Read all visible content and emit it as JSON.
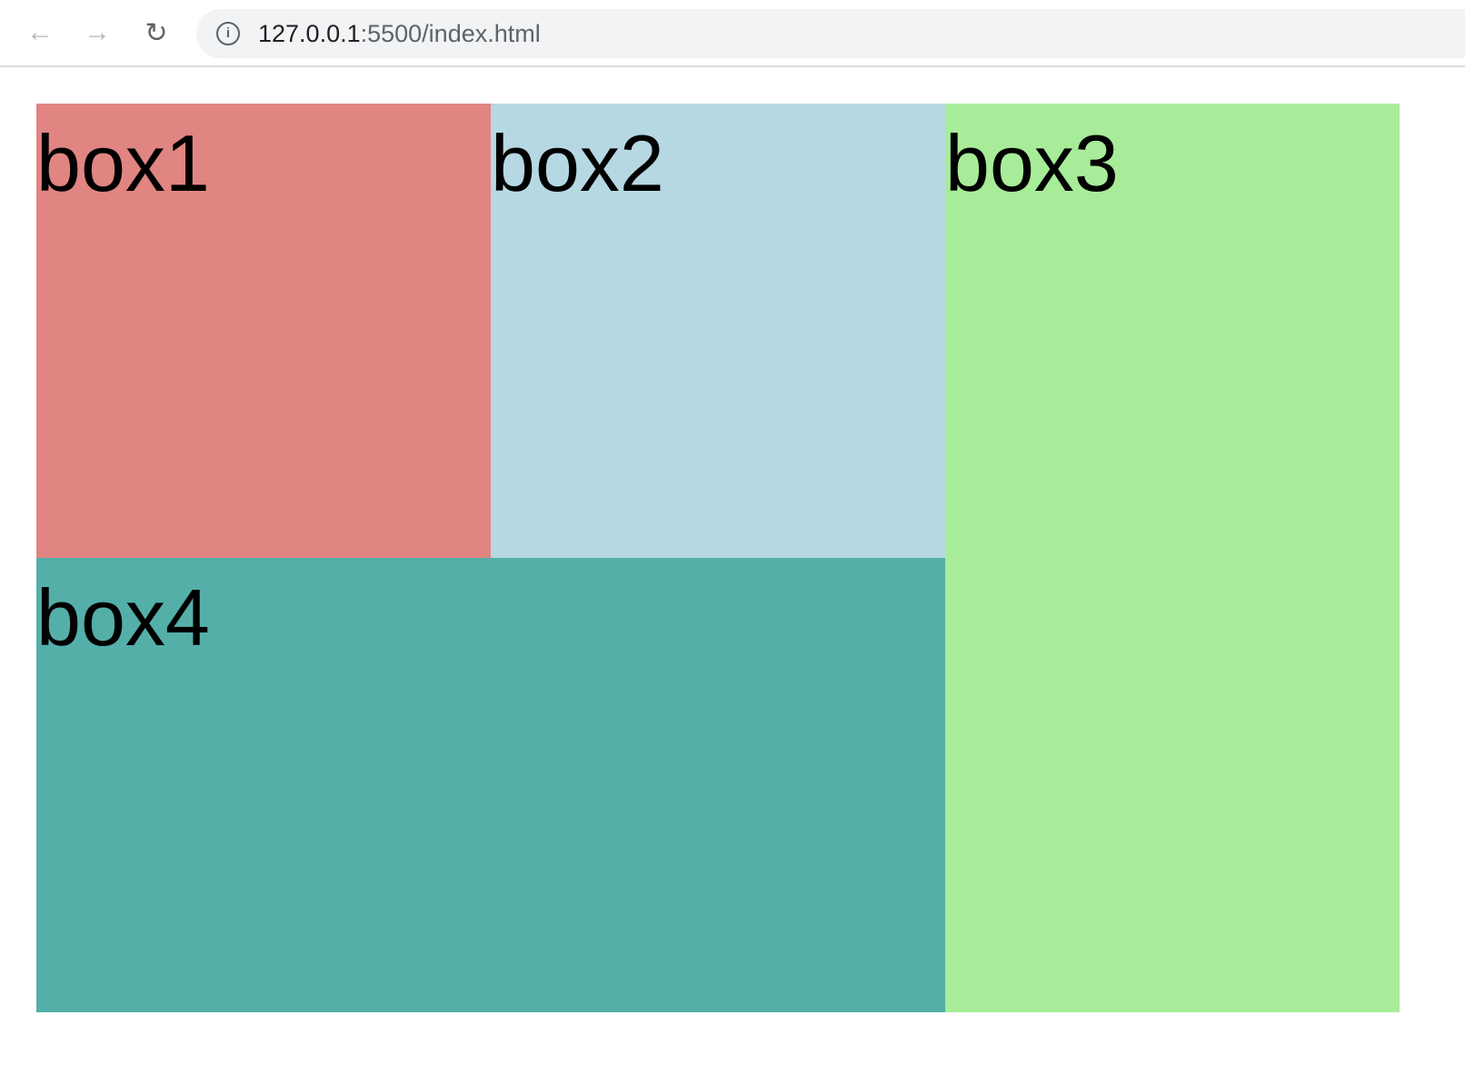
{
  "browser": {
    "url_host": "127.0.0.1",
    "url_rest": ":5500/index.html",
    "icons": [
      "back-arrow-icon",
      "forward-arrow-icon",
      "reload-icon",
      "info-icon"
    ]
  },
  "boxes": [
    {
      "label": "box1",
      "color": "#e08582"
    },
    {
      "label": "box2",
      "color": "#b6d8e3"
    },
    {
      "label": "box3",
      "color": "#a8ec99"
    },
    {
      "label": "box4",
      "color": "#54afa9"
    }
  ]
}
